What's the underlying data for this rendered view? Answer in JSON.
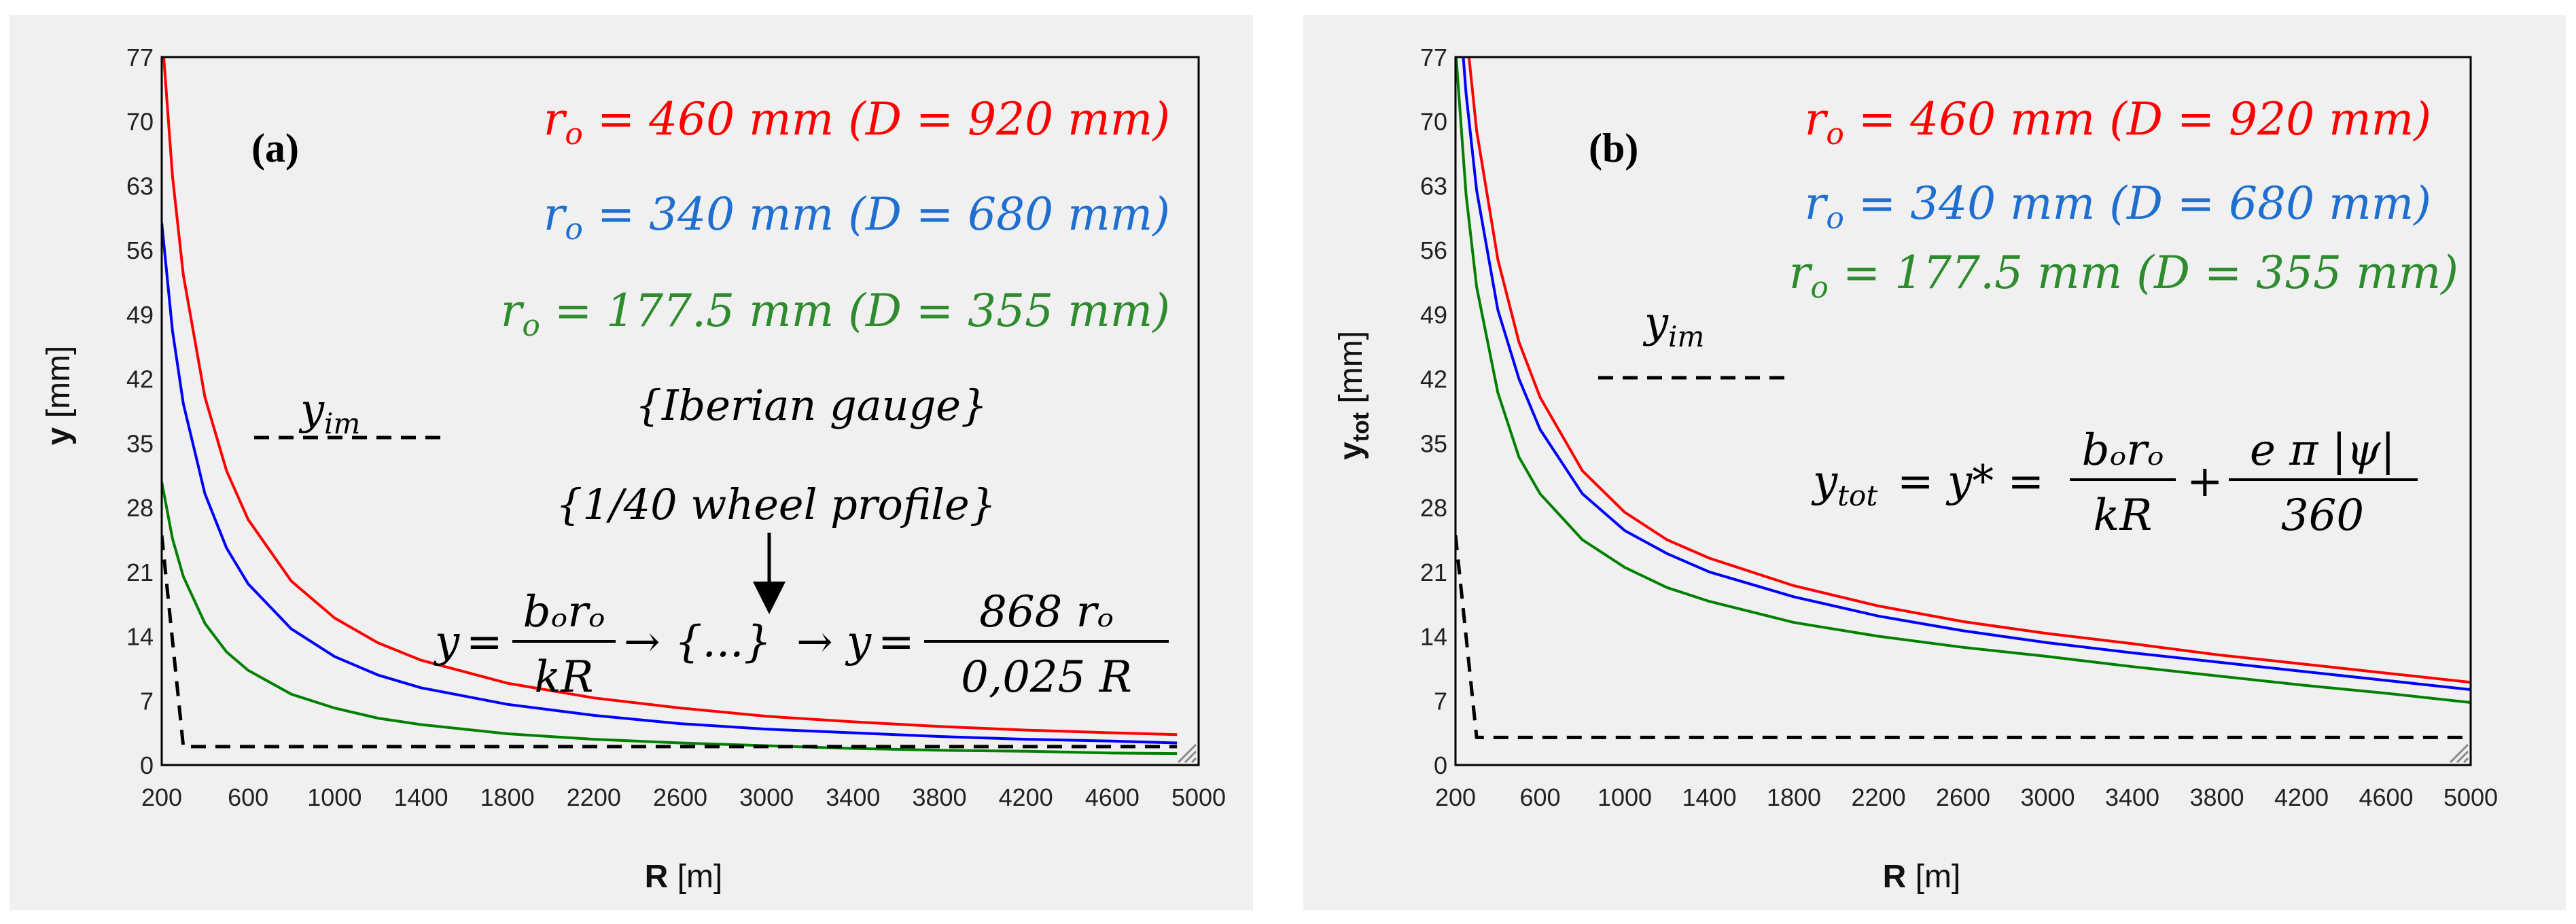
{
  "chart_data": [
    {
      "type": "line",
      "panel_label": "(a)",
      "xlabel": "R",
      "xlabel_unit": "[m]",
      "ylabel": "y",
      "ylabel_unit": "[mm]",
      "xlim": [
        200,
        5000
      ],
      "ylim": [
        0,
        77
      ],
      "x_ticks": [
        200,
        600,
        1000,
        1400,
        1800,
        2200,
        2600,
        3000,
        3400,
        3800,
        4200,
        4600,
        5000
      ],
      "y_ticks": [
        0,
        7,
        14,
        21,
        28,
        35,
        42,
        49,
        56,
        63,
        70,
        77
      ],
      "grid": false,
      "series": [
        {
          "name": "r_o = 460 mm (D = 920 mm)",
          "name_lhs": "r",
          "name_sub": "o",
          "name_rhs": " = 460 mm (D = 920 mm)",
          "color": "#ff0000",
          "x": [
            200,
            250,
            300,
            400,
            500,
            600,
            800,
            1000,
            1200,
            1400,
            1800,
            2200,
            2600,
            3000,
            3400,
            3800,
            4200,
            4600,
            4900
          ],
          "values": [
            80,
            64,
            53.3,
            40,
            32,
            26.7,
            20,
            16,
            13.3,
            11.4,
            8.9,
            7.3,
            6.2,
            5.3,
            4.7,
            4.2,
            3.8,
            3.5,
            3.3
          ]
        },
        {
          "name": "r_o = 340 mm (D = 680 mm)",
          "name_lhs": "r",
          "name_sub": "o",
          "name_rhs": " = 340 mm (D = 680 mm)",
          "color": "#0000ff",
          "x": [
            200,
            250,
            300,
            400,
            500,
            600,
            800,
            1000,
            1200,
            1400,
            1800,
            2200,
            2600,
            3000,
            3400,
            3800,
            4200,
            4600,
            4900
          ],
          "values": [
            59,
            47.2,
            39.3,
            29.5,
            23.6,
            19.7,
            14.8,
            11.8,
            9.8,
            8.4,
            6.6,
            5.4,
            4.5,
            3.9,
            3.5,
            3.1,
            2.8,
            2.6,
            2.4
          ]
        },
        {
          "name": "r_o = 177.5 mm (D = 355 mm)",
          "name_lhs": "r",
          "name_sub": "o",
          "name_rhs": " = 177.5 mm (D = 355 mm)",
          "color": "#008000",
          "x": [
            200,
            250,
            300,
            400,
            500,
            600,
            800,
            1000,
            1200,
            1400,
            1800,
            2200,
            2600,
            3000,
            3400,
            3800,
            4200,
            4600,
            4900
          ],
          "values": [
            30.8,
            24.6,
            20.5,
            15.4,
            12.3,
            10.3,
            7.7,
            6.2,
            5.1,
            4.4,
            3.4,
            2.8,
            2.4,
            2.1,
            1.8,
            1.6,
            1.5,
            1.3,
            1.25
          ]
        },
        {
          "name": "y_im",
          "name_lhs": "y",
          "name_sub": "im",
          "color": "#000000",
          "dashed": true,
          "x": [
            200,
            300,
            4900
          ],
          "values": [
            25,
            2,
            2
          ]
        }
      ],
      "annotations": {
        "gauge": "{Iberian gauge}",
        "profile": "{1/40 wheel profile}",
        "formula_y": "y",
        "formula_eq": "=",
        "formula_num": "bₒrₒ",
        "formula_den": "kR",
        "formula_arrow1": "→",
        "formula_mid": "{...}",
        "formula_arrow2": "→",
        "formula_y2": "y",
        "formula_eq2": "=",
        "formula_num2": "868 rₒ",
        "formula_den2": "0,025 R"
      }
    },
    {
      "type": "line",
      "panel_label": "(b)",
      "xlabel": "R",
      "xlabel_unit": "[m]",
      "ylabel": "y",
      "ylabel_sub": "tot",
      "ylabel_unit": "[mm]",
      "xlim": [
        200,
        5000
      ],
      "ylim": [
        0,
        77
      ],
      "x_ticks": [
        200,
        600,
        1000,
        1400,
        1800,
        2200,
        2600,
        3000,
        3400,
        3800,
        4200,
        4600,
        5000
      ],
      "y_ticks": [
        0,
        7,
        14,
        21,
        28,
        35,
        42,
        49,
        56,
        63,
        70,
        77
      ],
      "grid": false,
      "series": [
        {
          "name": "r_o = 460 mm (D = 920 mm)",
          "name_lhs": "r",
          "name_sub": "o",
          "name_rhs": " = 460 mm (D = 920 mm)",
          "color": "#ff0000",
          "x": [
            200,
            250,
            300,
            400,
            500,
            600,
            800,
            1000,
            1200,
            1400,
            1800,
            2200,
            2600,
            3000,
            3400,
            3800,
            4200,
            4600,
            5000
          ],
          "values": [
            95,
            80,
            69,
            55,
            46,
            40,
            32,
            27.5,
            24.5,
            22.5,
            19.5,
            17.3,
            15.6,
            14.3,
            13.2,
            12.0,
            11.0,
            10.0,
            9.0
          ]
        },
        {
          "name": "r_o = 340 mm (D = 680 mm)",
          "name_lhs": "r",
          "name_sub": "o",
          "name_rhs": " = 340 mm (D = 680 mm)",
          "color": "#0000ff",
          "x": [
            200,
            250,
            300,
            400,
            500,
            600,
            800,
            1000,
            1200,
            1400,
            1800,
            2200,
            2600,
            3000,
            3400,
            3800,
            4200,
            4600,
            5000
          ],
          "values": [
            88,
            73,
            62.5,
            49.5,
            42,
            36.5,
            29.5,
            25.5,
            23,
            21,
            18.3,
            16.2,
            14.6,
            13.3,
            12.2,
            11.2,
            10.2,
            9.2,
            8.2
          ]
        },
        {
          "name": "r_o = 177.5 mm (D = 355 mm)",
          "name_lhs": "r",
          "name_sub": "o",
          "name_rhs": " = 177.5 mm (D = 355 mm)",
          "color": "#008000",
          "x": [
            200,
            250,
            300,
            400,
            500,
            600,
            800,
            1000,
            1200,
            1400,
            1800,
            2200,
            2600,
            3000,
            3400,
            3800,
            4200,
            4600,
            5000
          ],
          "values": [
            78,
            62,
            52,
            40.5,
            33.5,
            29.5,
            24.5,
            21.5,
            19.3,
            17.8,
            15.5,
            14.0,
            12.8,
            11.8,
            10.7,
            9.7,
            8.7,
            7.8,
            6.8
          ]
        },
        {
          "name": "y_im",
          "name_lhs": "y",
          "name_sub": "im",
          "color": "#000000",
          "dashed": true,
          "x": [
            200,
            300,
            5000
          ],
          "values": [
            25,
            3,
            3
          ]
        }
      ],
      "annotations": {
        "formula_lhs": "y",
        "formula_lhs_sub": "tot",
        "formula_eq1": "= y* =",
        "formula_num": "bₒrₒ",
        "formula_den": "kR",
        "formula_plus": "+",
        "formula_num2": "e π |ψ|",
        "formula_den2": "360"
      }
    }
  ]
}
